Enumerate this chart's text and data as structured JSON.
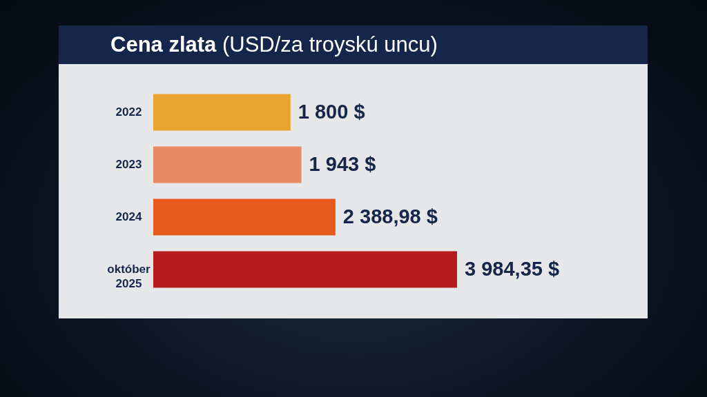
{
  "chart_data": {
    "type": "bar",
    "orientation": "horizontal",
    "title": "Cena zlata",
    "subtitle": "(USD/za troyskú uncu)",
    "categories": [
      "2022",
      "2023",
      "2024",
      "október 2025"
    ],
    "values": [
      1800,
      1943,
      2388.98,
      3984.35
    ],
    "colors": [
      "#e8a42c",
      "#e98a62",
      "#e55a1a",
      "#b71c1c"
    ],
    "value_labels": [
      "1 800 $",
      "1 943 $",
      "2 388,98 $",
      "3 984,35 $"
    ]
  }
}
